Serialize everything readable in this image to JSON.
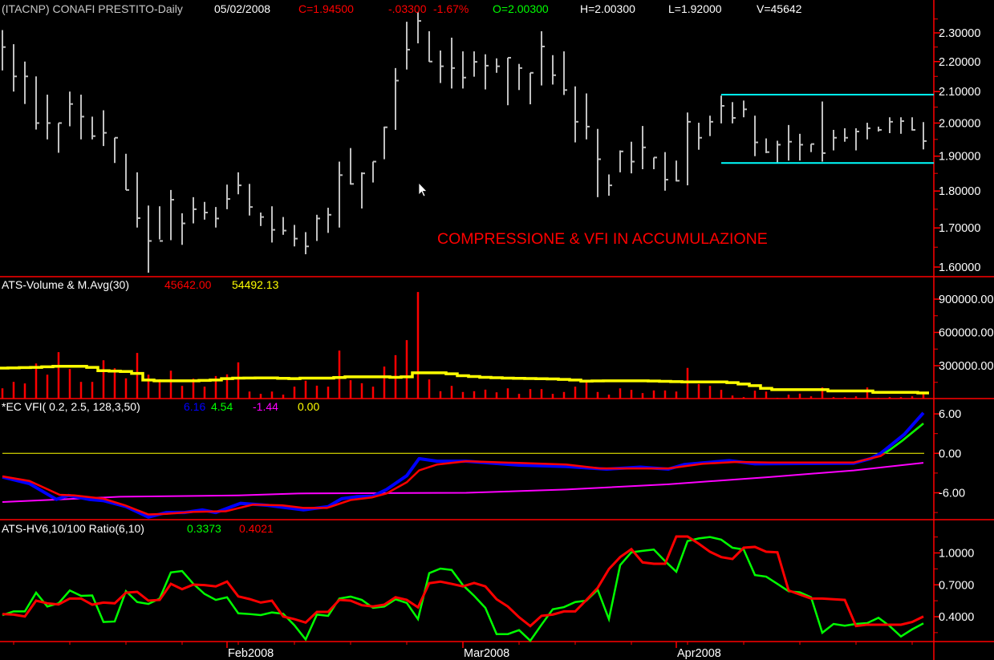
{
  "header": {
    "title": "(ITACNP) CONAFI PRESTITO-Daily",
    "date": "05/02/2008",
    "close": "C=1.94500",
    "change": "-.03300",
    "change_pct": "-1.67%",
    "open": "O=2.00300",
    "high": "H=2.00300",
    "low": "L=1.92000",
    "volume": "V=45642"
  },
  "annotation": "COMPRESSIONE & VFI IN ACCUMULAZIONE",
  "colors": {
    "background": "#000000",
    "bars": "#c0c0c0",
    "panel_border": "#ff0000",
    "channel": "#00ffff",
    "volume": "#ff0000",
    "ma": "#ffff00",
    "vfi": "#0000ff",
    "signal_up": "#00ff00",
    "signal_down": "#ff0000",
    "long_ma": "#ff00ff",
    "zero": "#ffff00",
    "hv6": "#00ff00",
    "hv10": "#ff0000"
  },
  "chart_data": [
    {
      "type": "ohlc",
      "panel": "price",
      "scale": "log",
      "ylim": [
        1.57,
        2.36
      ],
      "y_ticks": [
        "2.30000",
        "2.20000",
        "2.10000",
        "2.00000",
        "1.90000",
        "1.80000",
        "1.70000",
        "1.60000"
      ],
      "bars_hlc": [
        [
          2.31,
          2.17,
          2.25
        ],
        [
          2.26,
          2.1,
          2.15
        ],
        [
          2.2,
          2.06,
          2.15
        ],
        [
          2.15,
          1.98,
          2.0
        ],
        [
          2.09,
          1.95,
          2.0
        ],
        [
          2.0,
          1.91,
          2.0
        ],
        [
          2.1,
          1.99,
          2.06
        ],
        [
          2.09,
          1.95,
          2.02
        ],
        [
          2.02,
          1.95,
          1.96
        ],
        [
          2.04,
          1.93,
          1.97
        ],
        [
          1.955,
          1.88,
          1.955
        ],
        [
          1.907,
          1.803,
          1.803
        ],
        [
          1.853,
          1.701,
          1.726
        ],
        [
          1.76,
          1.586,
          1.666
        ],
        [
          1.758,
          1.67,
          1.666
        ],
        [
          1.803,
          1.668,
          1.776
        ],
        [
          1.739,
          1.656,
          1.712
        ],
        [
          1.783,
          1.712,
          1.75
        ],
        [
          1.77,
          1.722,
          1.741
        ],
        [
          1.756,
          1.701,
          1.725
        ],
        [
          1.818,
          1.75,
          1.778
        ],
        [
          1.853,
          1.791,
          1.816
        ],
        [
          1.82,
          1.733,
          1.756
        ],
        [
          1.741,
          1.705,
          1.729
        ],
        [
          1.758,
          1.662,
          1.695
        ],
        [
          1.729,
          1.682,
          1.693
        ],
        [
          1.708,
          1.652,
          1.672
        ],
        [
          1.689,
          1.632,
          1.652
        ],
        [
          1.735,
          1.666,
          1.725
        ],
        [
          1.754,
          1.687,
          1.735
        ],
        [
          1.884,
          1.701,
          1.845
        ],
        [
          1.924,
          1.818,
          1.82
        ],
        [
          1.853,
          1.752,
          1.85
        ],
        [
          1.884,
          1.824,
          1.884
        ],
        [
          1.989,
          1.891,
          1.987
        ],
        [
          2.178,
          1.979,
          2.136
        ],
        [
          2.34,
          2.173,
          2.241
        ],
        [
          2.375,
          2.263,
          2.343
        ],
        [
          2.306,
          2.199,
          2.2
        ],
        [
          2.238,
          2.128,
          2.184
        ],
        [
          2.283,
          2.11,
          2.178
        ],
        [
          2.235,
          2.11,
          2.146
        ],
        [
          2.235,
          2.149,
          2.199
        ],
        [
          2.225,
          2.107,
          2.186
        ],
        [
          2.211,
          2.162,
          2.184
        ],
        [
          2.213,
          2.056,
          2.213
        ],
        [
          2.192,
          2.105,
          2.178
        ],
        [
          2.162,
          2.059,
          2.162
        ],
        [
          2.306,
          2.12,
          2.252
        ],
        [
          2.222,
          2.123,
          2.154
        ],
        [
          2.235,
          2.089,
          2.105
        ],
        [
          2.117,
          1.941,
          2.004
        ],
        [
          2.094,
          1.95,
          1.989
        ],
        [
          1.982,
          1.783,
          1.891
        ],
        [
          1.847,
          1.787,
          1.816
        ],
        [
          1.917,
          1.853,
          1.914
        ],
        [
          1.943,
          1.85,
          1.884
        ],
        [
          1.991,
          1.862,
          1.926
        ],
        [
          1.896,
          1.862,
          1.896
        ],
        [
          1.912,
          1.801,
          1.832
        ],
        [
          1.887,
          1.827,
          1.829
        ],
        [
          2.033,
          1.816,
          2.004
        ],
        [
          2.001,
          1.919,
          1.955
        ],
        [
          2.023,
          1.96,
          2.004
        ],
        [
          2.087,
          1.999,
          2.054
        ],
        [
          2.066,
          1.999,
          2.016
        ],
        [
          2.071,
          2.018,
          2.043
        ],
        [
          2.023,
          1.9,
          1.941
        ],
        [
          1.953,
          1.909,
          1.912
        ],
        [
          1.946,
          1.882,
          1.934
        ],
        [
          1.994,
          1.887,
          1.943
        ],
        [
          1.967,
          1.887,
          1.934
        ],
        [
          1.936,
          1.912,
          1.936
        ],
        [
          2.068,
          1.884,
          1.909
        ],
        [
          1.979,
          1.917,
          1.955
        ],
        [
          1.984,
          1.943,
          1.955
        ],
        [
          1.984,
          1.917,
          1.974
        ],
        [
          2.001,
          1.95,
          1.984
        ],
        [
          1.989,
          1.974,
          1.979
        ],
        [
          2.018,
          1.969,
          2.004
        ],
        [
          2.018,
          1.967,
          2.006
        ],
        [
          2.018,
          1.977,
          1.979
        ],
        [
          2.003,
          1.92,
          1.945
        ]
      ],
      "channel": {
        "upper": 2.09,
        "lower": 1.88,
        "from_bar": 65
      }
    },
    {
      "type": "bar",
      "panel": "volume",
      "title": "ATS-Volume & M.Avg(30)",
      "last_volume": "45642.00",
      "last_ma": "54492.13",
      "y_ticks": [
        "900000.00",
        "600000.00",
        "300000.00"
      ],
      "volume": [
        96000,
        154000,
        140000,
        320000,
        219000,
        422000,
        270000,
        154000,
        154000,
        349000,
        277000,
        186000,
        415000,
        219000,
        178000,
        255000,
        118000,
        183000,
        111000,
        207000,
        222000,
        330000,
        67000,
        46000,
        67000,
        39000,
        111000,
        164000,
        120000,
        111000,
        436000,
        169000,
        142000,
        111000,
        292000,
        395000,
        530000,
        964000,
        176000,
        70000,
        118000,
        63000,
        70000,
        84000,
        60000,
        96000,
        46000,
        89000,
        89000,
        46000,
        63000,
        111000,
        157000,
        63000,
        39000,
        96000,
        82000,
        53000,
        77000,
        77000,
        67000,
        280000,
        135000,
        118000,
        82000,
        31000,
        17000,
        75000,
        67000,
        10000,
        39000,
        48000,
        24000,
        104000,
        17000,
        17000,
        24000,
        104000,
        10000,
        17000,
        17000,
        24000,
        45642
      ],
      "ma30_knots": [
        [
          1,
          278000
        ],
        [
          4,
          285000
        ],
        [
          6,
          295000
        ],
        [
          8,
          295000
        ],
        [
          9,
          285000
        ],
        [
          10,
          255000
        ],
        [
          12,
          248000
        ],
        [
          13,
          230000
        ],
        [
          14,
          171000
        ],
        [
          15,
          164000
        ],
        [
          18,
          164000
        ],
        [
          20,
          171000
        ],
        [
          21,
          183000
        ],
        [
          22,
          188000
        ],
        [
          25,
          190000
        ],
        [
          27,
          183000
        ],
        [
          28,
          188000
        ],
        [
          30,
          188000
        ],
        [
          31,
          193000
        ],
        [
          32,
          200000
        ],
        [
          35,
          200000
        ],
        [
          36,
          195000
        ],
        [
          37,
          200000
        ],
        [
          38,
          236000
        ],
        [
          40,
          236000
        ],
        [
          41,
          227000
        ],
        [
          42,
          210000
        ],
        [
          44,
          195000
        ],
        [
          46,
          188000
        ],
        [
          50,
          181000
        ],
        [
          52,
          171000
        ],
        [
          53,
          161000
        ],
        [
          55,
          164000
        ],
        [
          58,
          164000
        ],
        [
          60,
          159000
        ],
        [
          62,
          154000
        ],
        [
          65,
          154000
        ],
        [
          66,
          147000
        ],
        [
          67,
          135000
        ],
        [
          68,
          120000
        ],
        [
          69,
          96000
        ],
        [
          70,
          84000
        ],
        [
          74,
          84000
        ],
        [
          75,
          72000
        ],
        [
          78,
          72000
        ],
        [
          79,
          60000
        ],
        [
          82,
          60000
        ],
        [
          83,
          54492
        ]
      ]
    },
    {
      "type": "line",
      "panel": "vfi",
      "title": "*EC VFI( 0.2, 2.5, 128,3,50)",
      "last_values": [
        "6.16",
        "4.54",
        "-1.44",
        "0.00"
      ],
      "y_ticks": [
        "6.00",
        "0.00",
        "-6.00"
      ],
      "vfi": [
        [
          1,
          -3.6
        ],
        [
          3.4,
          -4.6
        ],
        [
          5.8,
          -7.0
        ],
        [
          6.9,
          -6.4
        ],
        [
          8.7,
          -7.0
        ],
        [
          10,
          -7.2
        ],
        [
          12,
          -8.1
        ],
        [
          14,
          -9.7
        ],
        [
          15.6,
          -9.0
        ],
        [
          17.2,
          -9.0
        ],
        [
          18.8,
          -8.6
        ],
        [
          20,
          -9.0
        ],
        [
          22.2,
          -7.6
        ],
        [
          24.6,
          -7.9
        ],
        [
          27.8,
          -8.6
        ],
        [
          30,
          -8.1
        ],
        [
          31.2,
          -6.9
        ],
        [
          32.5,
          -6.6
        ],
        [
          34,
          -6.5
        ],
        [
          35.2,
          -5.5
        ],
        [
          37,
          -3.4
        ],
        [
          38.1,
          -0.8
        ],
        [
          39.7,
          -1.2
        ],
        [
          42.3,
          -1.2
        ],
        [
          47,
          -1.8
        ],
        [
          51.2,
          -2.0
        ],
        [
          54.8,
          -2.4
        ],
        [
          57.8,
          -2.1
        ],
        [
          60.3,
          -2.4
        ],
        [
          61.7,
          -1.7
        ],
        [
          65.7,
          -1.1
        ],
        [
          68,
          -1.6
        ],
        [
          76.8,
          -1.5
        ],
        [
          78.3,
          -0.8
        ],
        [
          79.2,
          0
        ],
        [
          81.3,
          2.9
        ],
        [
          83,
          6.16
        ]
      ],
      "signal": [
        [
          1,
          -3.5
        ],
        [
          3.4,
          -4.2
        ],
        [
          6.1,
          -6.3
        ],
        [
          7.4,
          -6.4
        ],
        [
          10,
          -6.9
        ],
        [
          11.9,
          -7.9
        ],
        [
          14,
          -9.3
        ],
        [
          15.6,
          -9.2
        ],
        [
          18,
          -8.9
        ],
        [
          20.9,
          -8.8
        ],
        [
          23.3,
          -7.8
        ],
        [
          25.9,
          -7.9
        ],
        [
          27.8,
          -8.3
        ],
        [
          29.9,
          -8.3
        ],
        [
          32,
          -7.1
        ],
        [
          33.9,
          -6.7
        ],
        [
          35.2,
          -6.1
        ],
        [
          37,
          -4.4
        ],
        [
          38.1,
          -2.6
        ],
        [
          39.7,
          -1.7
        ],
        [
          42.3,
          -1.2
        ],
        [
          51.2,
          -1.7
        ],
        [
          54.2,
          -2.3
        ],
        [
          60.3,
          -2.3
        ],
        [
          63.3,
          -1.6
        ],
        [
          66.3,
          -1.3
        ],
        [
          69.3,
          -1.4
        ],
        [
          76.8,
          -1.4
        ],
        [
          79.2,
          -0.4
        ],
        [
          80.1,
          0.65
        ],
        [
          81.1,
          1.9
        ],
        [
          83,
          4.54
        ]
      ],
      "long_ma": [
        [
          1,
          -7.4
        ],
        [
          11.5,
          -6.6
        ],
        [
          22,
          -6.4
        ],
        [
          27.3,
          -6.1
        ],
        [
          42.3,
          -6.0
        ],
        [
          51.2,
          -5.5
        ],
        [
          60.3,
          -4.7
        ],
        [
          69.3,
          -3.6
        ],
        [
          76.8,
          -2.6
        ],
        [
          83,
          -1.44
        ]
      ],
      "zero_line": 0
    },
    {
      "type": "line",
      "panel": "hv",
      "title": "ATS-HV6,10/100 Ratio(6,10)",
      "last_values": [
        "0.3373",
        "0.4021"
      ],
      "y_ticks": [
        "1.0000",
        "0.7000",
        "0.4000"
      ],
      "hv6": [
        0.415,
        0.45,
        0.45,
        0.626,
        0.496,
        0.526,
        0.647,
        0.596,
        0.6,
        0.35,
        0.355,
        0.641,
        0.538,
        0.52,
        0.571,
        0.817,
        0.83,
        0.709,
        0.614,
        0.558,
        0.583,
        0.432,
        0.425,
        0.415,
        0.44,
        0.427,
        0.319,
        0.186,
        0.42,
        0.408,
        0.571,
        0.589,
        0.558,
        0.483,
        0.496,
        0.564,
        0.53,
        0.377,
        0.81,
        0.853,
        0.84,
        0.697,
        0.596,
        0.483,
        0.236,
        0.236,
        0.274,
        0.174,
        0.325,
        0.47,
        0.49,
        0.538,
        0.551,
        0.654,
        0.377,
        0.885,
        1.006,
        1.02,
        1.032,
        0.923,
        0.823,
        1.112,
        1.137,
        1.15,
        1.125,
        1.049,
        1.032,
        0.792,
        0.777,
        0.709,
        0.639,
        0.629,
        0.583,
        0.249,
        0.332,
        0.315,
        0.332,
        0.34,
        0.39,
        0.312,
        0.214,
        0.281,
        0.3373
      ],
      "hv10": [
        0.425,
        0.42,
        0.402,
        0.551,
        0.526,
        0.515,
        0.571,
        0.571,
        0.513,
        0.533,
        0.526,
        0.626,
        0.634,
        0.551,
        0.558,
        0.709,
        0.659,
        0.702,
        0.697,
        0.685,
        0.73,
        0.591,
        0.566,
        0.533,
        0.551,
        0.402,
        0.377,
        0.345,
        0.445,
        0.445,
        0.558,
        0.551,
        0.508,
        0.496,
        0.513,
        0.583,
        0.558,
        0.488,
        0.715,
        0.73,
        0.709,
        0.685,
        0.717,
        0.685,
        0.564,
        0.496,
        0.395,
        0.312,
        0.408,
        0.42,
        0.45,
        0.45,
        0.558,
        0.672,
        0.848,
        0.961,
        1.036,
        0.911,
        0.898,
        0.898,
        1.155,
        1.155,
        1.087,
        1.011,
        0.961,
        0.943,
        1.049,
        1.057,
        1.011,
        1.006,
        0.647,
        0.609,
        0.571,
        0.571,
        0.564,
        0.558,
        0.312,
        0.325,
        0.325,
        0.325,
        0.325,
        0.35,
        0.4021
      ]
    }
  ],
  "x_axis": {
    "month_ticks": [
      {
        "label": "Feb2008",
        "bar": 21
      },
      {
        "label": "Mar2008",
        "bar": 42
      },
      {
        "label": "Apr2008",
        "bar": 61
      }
    ]
  },
  "cursor": "arrow-pointer-icon"
}
